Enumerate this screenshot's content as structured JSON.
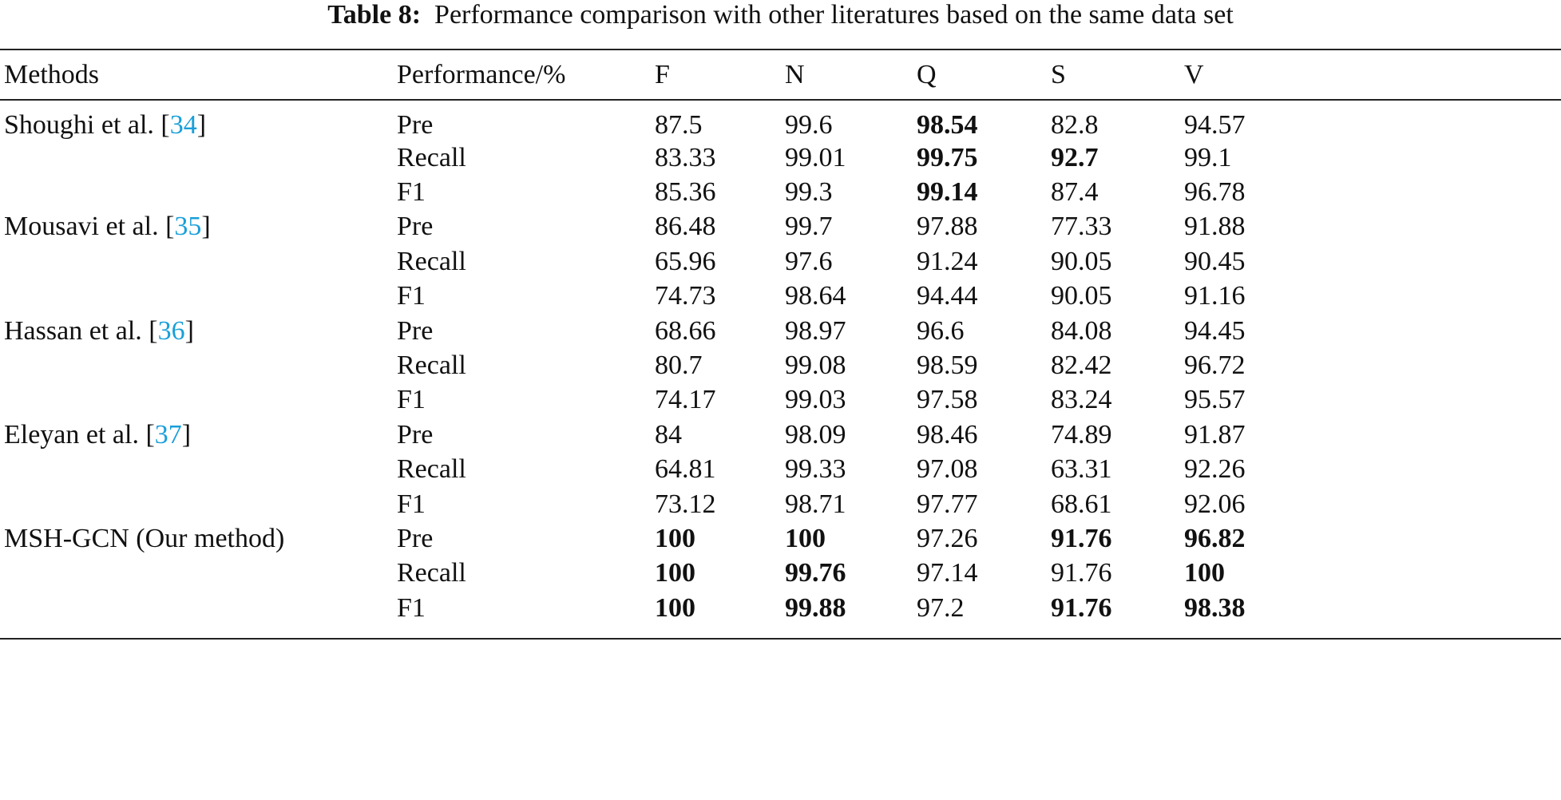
{
  "caption": {
    "label": "Table 8:",
    "text": "Performance comparison with other literatures based on the same data set"
  },
  "colors": {
    "citation": "#1a9fd9"
  },
  "headers": [
    "Methods",
    "Performance/%",
    "F",
    "N",
    "Q",
    "S",
    "V"
  ],
  "groups": [
    {
      "method": "Shoughi et al. [",
      "cite": "34",
      "close": "]",
      "rows": [
        {
          "metric": "Pre",
          "values": [
            {
              "v": "87.5"
            },
            {
              "v": "99.6"
            },
            {
              "v": "98.54",
              "bold": true
            },
            {
              "v": "82.8"
            },
            {
              "v": "94.57"
            }
          ]
        },
        {
          "metric": "Recall",
          "values": [
            {
              "v": "83.33"
            },
            {
              "v": "99.01"
            },
            {
              "v": "99.75",
              "bold": true
            },
            {
              "v": "92.7",
              "bold": true
            },
            {
              "v": "99.1"
            }
          ]
        },
        {
          "metric": "F1",
          "values": [
            {
              "v": "85.36"
            },
            {
              "v": "99.3"
            },
            {
              "v": "99.14",
              "bold": true
            },
            {
              "v": "87.4"
            },
            {
              "v": "96.78"
            }
          ]
        }
      ]
    },
    {
      "method": "Mousavi et al. [",
      "cite": "35",
      "close": "]",
      "rows": [
        {
          "metric": "Pre",
          "values": [
            {
              "v": "86.48"
            },
            {
              "v": "99.7"
            },
            {
              "v": "97.88"
            },
            {
              "v": "77.33"
            },
            {
              "v": "91.88"
            }
          ]
        },
        {
          "metric": "Recall",
          "values": [
            {
              "v": "65.96"
            },
            {
              "v": "97.6"
            },
            {
              "v": "91.24"
            },
            {
              "v": "90.05"
            },
            {
              "v": "90.45"
            }
          ]
        },
        {
          "metric": "F1",
          "values": [
            {
              "v": "74.73"
            },
            {
              "v": "98.64"
            },
            {
              "v": "94.44"
            },
            {
              "v": "90.05"
            },
            {
              "v": "91.16"
            }
          ]
        }
      ]
    },
    {
      "method": "Hassan et al. [",
      "cite": "36",
      "close": "]",
      "rows": [
        {
          "metric": "Pre",
          "values": [
            {
              "v": "68.66"
            },
            {
              "v": "98.97"
            },
            {
              "v": "96.6"
            },
            {
              "v": "84.08"
            },
            {
              "v": "94.45"
            }
          ]
        },
        {
          "metric": "Recall",
          "values": [
            {
              "v": "80.7"
            },
            {
              "v": "99.08"
            },
            {
              "v": "98.59"
            },
            {
              "v": "82.42"
            },
            {
              "v": "96.72"
            }
          ]
        },
        {
          "metric": "F1",
          "values": [
            {
              "v": "74.17"
            },
            {
              "v": "99.03"
            },
            {
              "v": "97.58"
            },
            {
              "v": "83.24"
            },
            {
              "v": "95.57"
            }
          ]
        }
      ]
    },
    {
      "method": "Eleyan et al. [",
      "cite": "37",
      "close": "]",
      "rows": [
        {
          "metric": "Pre",
          "values": [
            {
              "v": "84"
            },
            {
              "v": "98.09"
            },
            {
              "v": "98.46"
            },
            {
              "v": "74.89"
            },
            {
              "v": "91.87"
            }
          ]
        },
        {
          "metric": "Recall",
          "values": [
            {
              "v": "64.81"
            },
            {
              "v": "99.33"
            },
            {
              "v": "97.08"
            },
            {
              "v": "63.31"
            },
            {
              "v": "92.26"
            }
          ]
        },
        {
          "metric": "F1",
          "values": [
            {
              "v": "73.12"
            },
            {
              "v": "98.71"
            },
            {
              "v": "97.77"
            },
            {
              "v": "68.61"
            },
            {
              "v": "92.06"
            }
          ]
        }
      ]
    },
    {
      "method": "MSH-GCN (Our method)",
      "cite": "",
      "close": "",
      "rows": [
        {
          "metric": "Pre",
          "values": [
            {
              "v": "100",
              "bold": true
            },
            {
              "v": "100",
              "bold": true
            },
            {
              "v": "97.26"
            },
            {
              "v": "91.76",
              "bold": true
            },
            {
              "v": "96.82",
              "bold": true
            }
          ]
        },
        {
          "metric": "Recall",
          "values": [
            {
              "v": "100",
              "bold": true
            },
            {
              "v": "99.76",
              "bold": true
            },
            {
              "v": "97.14"
            },
            {
              "v": "91.76"
            },
            {
              "v": "100",
              "bold": true
            }
          ]
        },
        {
          "metric": "F1",
          "values": [
            {
              "v": "100",
              "bold": true
            },
            {
              "v": "99.88",
              "bold": true
            },
            {
              "v": "97.2"
            },
            {
              "v": "91.76",
              "bold": true
            },
            {
              "v": "98.38",
              "bold": true
            }
          ]
        }
      ]
    }
  ]
}
